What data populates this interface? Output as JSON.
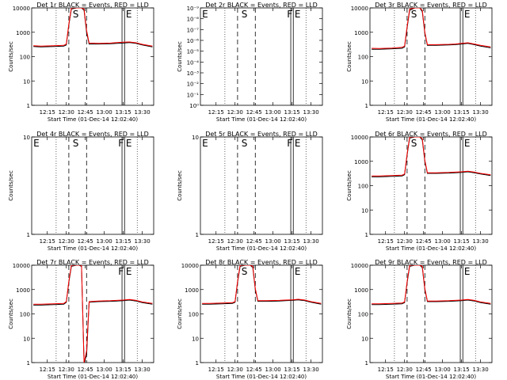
{
  "figure": {
    "ylabel": "Counts/sec",
    "xlabel": "Start Time (01-Dec-14 12:02:40)",
    "xticks": [
      "12:15",
      "12:30",
      "12:45",
      "13:00",
      "13:15",
      "13:30"
    ],
    "colors": {
      "events": "#000000",
      "lld": "#ff0000"
    },
    "marker_letters": {
      "E": "E",
      "S": "S",
      "F": "F"
    }
  },
  "chart_data": [
    {
      "type": "line",
      "title": "Det 1r BLACK = Events, RED = LLD",
      "yscale": "log",
      "ylim": [
        1,
        10000
      ],
      "yticks": [
        "1",
        "10",
        "100",
        "1000",
        "10000"
      ],
      "xlim": [
        "12:02:40",
        "13:39"
      ],
      "markers": [
        "S",
        "E"
      ],
      "series": [
        {
          "name": "Events",
          "x": [
            "12:04",
            "12:10",
            "12:20",
            "12:28",
            "12:30",
            "12:32",
            "12:34",
            "12:38",
            "12:42",
            "12:44",
            "12:46",
            "12:48",
            "12:55",
            "13:05",
            "13:10",
            "13:15",
            "13:20",
            "13:25",
            "13:30",
            "13:38"
          ],
          "y": [
            260,
            250,
            260,
            270,
            300,
            2000,
            9000,
            10000,
            10000,
            8000,
            1000,
            330,
            330,
            340,
            350,
            360,
            380,
            350,
            300,
            250
          ]
        },
        {
          "name": "LLD",
          "x": [
            "12:04",
            "12:10",
            "12:20",
            "12:28",
            "12:30",
            "12:32",
            "12:34",
            "12:38",
            "12:42",
            "12:44",
            "12:46",
            "12:48",
            "12:55",
            "13:05",
            "13:10",
            "13:15",
            "13:20",
            "13:25",
            "13:30",
            "13:38"
          ],
          "y": [
            280,
            270,
            280,
            290,
            330,
            2200,
            10000,
            10000,
            10000,
            9000,
            1200,
            360,
            350,
            360,
            380,
            390,
            400,
            370,
            320,
            270
          ]
        }
      ]
    },
    {
      "type": "line",
      "title": "Det 2r BLACK = Events, RED = LLD",
      "yscale": "log",
      "ylim": [
        1,
        1e-09
      ],
      "yticks": [
        "10⁰",
        "10⁻¹",
        "10⁻²",
        "10⁻³",
        "10⁻⁴",
        "10⁻⁵",
        "10⁻⁶",
        "10⁻⁷",
        "10⁻⁸",
        "10⁻⁹"
      ],
      "xlim": [
        "12:02:40",
        "13:39"
      ],
      "markers": [
        "E",
        "S",
        "F",
        "E"
      ],
      "series": []
    },
    {
      "type": "line",
      "title": "Det 3r BLACK = Events, RED = LLD",
      "yscale": "log",
      "ylim": [
        1,
        10000
      ],
      "yticks": [
        "1",
        "10",
        "100",
        "1000",
        "10000"
      ],
      "xlim": [
        "12:02:40",
        "13:39"
      ],
      "markers": [
        "S",
        "E"
      ],
      "series": [
        {
          "name": "Events",
          "x": [
            "12:04",
            "12:10",
            "12:20",
            "12:28",
            "12:30",
            "12:32",
            "12:34",
            "12:38",
            "12:42",
            "12:44",
            "12:46",
            "12:48",
            "12:55",
            "13:05",
            "13:10",
            "13:15",
            "13:20",
            "13:25",
            "13:30",
            "13:38"
          ],
          "y": [
            200,
            200,
            210,
            220,
            250,
            1500,
            8000,
            10000,
            10000,
            7000,
            900,
            290,
            290,
            300,
            310,
            330,
            350,
            310,
            270,
            230
          ]
        },
        {
          "name": "LLD",
          "x": [
            "12:04",
            "12:10",
            "12:20",
            "12:28",
            "12:30",
            "12:32",
            "12:34",
            "12:38",
            "12:42",
            "12:44",
            "12:46",
            "12:48",
            "12:55",
            "13:05",
            "13:10",
            "13:15",
            "13:20",
            "13:25",
            "13:30",
            "13:38"
          ],
          "y": [
            220,
            215,
            225,
            240,
            270,
            1700,
            9000,
            10000,
            10000,
            8000,
            1000,
            310,
            310,
            320,
            330,
            350,
            370,
            330,
            290,
            250
          ]
        }
      ]
    },
    {
      "type": "line",
      "title": "Det 4r BLACK = Events, RED = LLD",
      "yscale": "log",
      "ylim": [
        1,
        10
      ],
      "yticks": [
        "1",
        "10"
      ],
      "xlim": [
        "12:02:40",
        "13:39"
      ],
      "markers": [
        "E",
        "S",
        "F",
        "E"
      ],
      "series": []
    },
    {
      "type": "line",
      "title": "Det 5r BLACK = Events, RED = LLD",
      "yscale": "log",
      "ylim": [
        1,
        10
      ],
      "yticks": [
        "1",
        "10"
      ],
      "xlim": [
        "12:02:40",
        "13:39"
      ],
      "markers": [
        "E",
        "S",
        "F",
        "E"
      ],
      "series": []
    },
    {
      "type": "line",
      "title": "Det 6r BLACK = Events, RED = LLD",
      "yscale": "log",
      "ylim": [
        1,
        10000
      ],
      "yticks": [
        "1",
        "10",
        "100",
        "1000",
        "10000"
      ],
      "xlim": [
        "12:02:40",
        "13:39"
      ],
      "markers": [
        "S",
        "E"
      ],
      "series": [
        {
          "name": "Events",
          "x": [
            "12:04",
            "12:10",
            "12:20",
            "12:28",
            "12:30",
            "12:32",
            "12:34",
            "12:38",
            "12:42",
            "12:44",
            "12:46",
            "12:48",
            "12:55",
            "13:05",
            "13:10",
            "13:15",
            "13:20",
            "13:25",
            "13:30",
            "13:38"
          ],
          "y": [
            230,
            230,
            240,
            250,
            280,
            1800,
            9000,
            10000,
            10000,
            7500,
            1000,
            320,
            320,
            330,
            340,
            350,
            370,
            340,
            300,
            260
          ]
        },
        {
          "name": "LLD",
          "x": [
            "12:04",
            "12:10",
            "12:20",
            "12:28",
            "12:30",
            "12:32",
            "12:34",
            "12:38",
            "12:42",
            "12:44",
            "12:46",
            "12:48",
            "12:55",
            "13:05",
            "13:10",
            "13:15",
            "13:20",
            "13:25",
            "13:30",
            "13:38"
          ],
          "y": [
            250,
            250,
            260,
            270,
            300,
            2000,
            10000,
            10000,
            10000,
            8500,
            1100,
            340,
            340,
            350,
            360,
            370,
            390,
            360,
            320,
            280
          ]
        }
      ]
    },
    {
      "type": "line",
      "title": "Det 7r BLACK = Events, RED = LLD",
      "yscale": "log",
      "ylim": [
        1,
        10000
      ],
      "yticks": [
        "1",
        "10",
        "100",
        "1000",
        "10000"
      ],
      "xlim": [
        "12:02:40",
        "13:39"
      ],
      "markers": [
        "F",
        "E"
      ],
      "series": [
        {
          "name": "Events",
          "x": [
            "12:04",
            "12:10",
            "12:20",
            "12:28",
            "12:30",
            "12:32",
            "12:34",
            "12:38",
            "12:40",
            "12:42",
            "12:44",
            "12:46",
            "12:48",
            "12:55",
            "13:05",
            "13:10",
            "13:15",
            "13:20",
            "13:25",
            "13:30",
            "13:38"
          ],
          "y": [
            230,
            230,
            240,
            250,
            300,
            2000,
            9000,
            10000,
            10000,
            9000,
            1,
            2,
            300,
            320,
            330,
            340,
            350,
            370,
            340,
            290,
            250
          ]
        },
        {
          "name": "LLD",
          "x": [
            "12:04",
            "12:10",
            "12:20",
            "12:28",
            "12:30",
            "12:32",
            "12:34",
            "12:38",
            "12:40",
            "12:42",
            "12:44",
            "12:46",
            "12:48",
            "12:55",
            "13:05",
            "13:10",
            "13:15",
            "13:20",
            "13:25",
            "13:30",
            "13:38"
          ],
          "y": [
            250,
            250,
            260,
            270,
            320,
            2200,
            10000,
            10000,
            10000,
            10000,
            1,
            3,
            320,
            340,
            350,
            360,
            370,
            390,
            360,
            310,
            270
          ]
        }
      ]
    },
    {
      "type": "line",
      "title": "Det 8r BLACK = Events, RED = LLD",
      "yscale": "log",
      "ylim": [
        1,
        10000
      ],
      "yticks": [
        "1",
        "10",
        "100",
        "1000",
        "10000"
      ],
      "xlim": [
        "12:02:40",
        "13:39"
      ],
      "markers": [
        "S",
        "E"
      ],
      "series": [
        {
          "name": "Events",
          "x": [
            "12:04",
            "12:10",
            "12:20",
            "12:28",
            "12:30",
            "12:32",
            "12:34",
            "12:38",
            "12:42",
            "12:44",
            "12:46",
            "12:48",
            "12:55",
            "13:05",
            "13:10",
            "13:15",
            "13:20",
            "13:25",
            "13:30",
            "13:38"
          ],
          "y": [
            250,
            250,
            260,
            270,
            300,
            2000,
            9000,
            10000,
            10000,
            8000,
            1000,
            330,
            330,
            340,
            350,
            360,
            380,
            350,
            300,
            250
          ]
        },
        {
          "name": "LLD",
          "x": [
            "12:04",
            "12:10",
            "12:20",
            "12:28",
            "12:30",
            "12:32",
            "12:34",
            "12:38",
            "12:42",
            "12:44",
            "12:46",
            "12:48",
            "12:55",
            "13:05",
            "13:10",
            "13:15",
            "13:20",
            "13:25",
            "13:30",
            "13:38"
          ],
          "y": [
            270,
            270,
            280,
            290,
            320,
            2200,
            10000,
            10000,
            10000,
            9000,
            1100,
            350,
            350,
            360,
            370,
            380,
            400,
            370,
            320,
            270
          ]
        }
      ]
    },
    {
      "type": "line",
      "title": "Det 9r BLACK = Events, RED = LLD",
      "yscale": "log",
      "ylim": [
        1,
        10000
      ],
      "yticks": [
        "1",
        "10",
        "100",
        "1000",
        "10000"
      ],
      "xlim": [
        "12:02:40",
        "13:39"
      ],
      "markers": [
        "E"
      ],
      "series": [
        {
          "name": "Events",
          "x": [
            "12:04",
            "12:10",
            "12:20",
            "12:28",
            "12:30",
            "12:32",
            "12:34",
            "12:38",
            "12:42",
            "12:44",
            "12:46",
            "12:48",
            "12:55",
            "13:05",
            "13:10",
            "13:15",
            "13:20",
            "13:25",
            "13:30",
            "13:38"
          ],
          "y": [
            240,
            240,
            250,
            260,
            290,
            1900,
            9000,
            10000,
            10000,
            8000,
            1000,
            320,
            320,
            330,
            340,
            350,
            370,
            340,
            290,
            250
          ]
        },
        {
          "name": "LLD",
          "x": [
            "12:04",
            "12:10",
            "12:20",
            "12:28",
            "12:30",
            "12:32",
            "12:34",
            "12:38",
            "12:42",
            "12:44",
            "12:46",
            "12:48",
            "12:55",
            "13:05",
            "13:10",
            "13:15",
            "13:20",
            "13:25",
            "13:30",
            "13:38"
          ],
          "y": [
            260,
            260,
            270,
            280,
            310,
            2100,
            10000,
            10000,
            10000,
            9000,
            1100,
            340,
            340,
            350,
            360,
            370,
            390,
            360,
            310,
            270
          ]
        }
      ]
    }
  ]
}
